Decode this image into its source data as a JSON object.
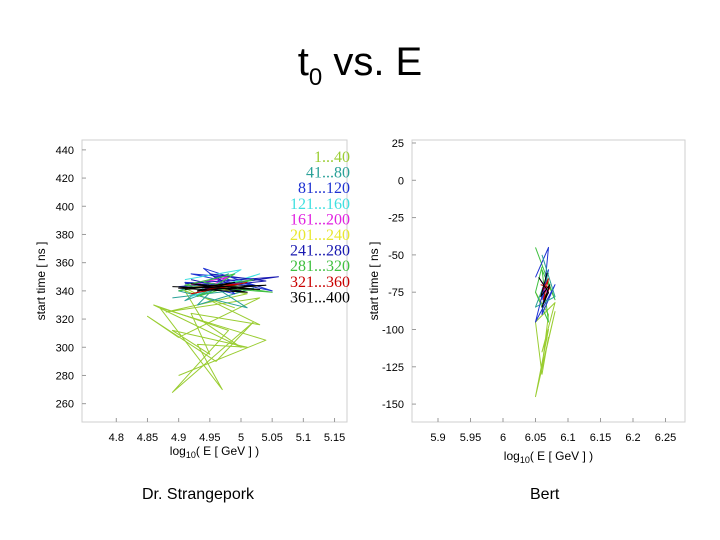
{
  "slide": {
    "title_main": "t",
    "title_sub": "0",
    "title_rest": " vs. E"
  },
  "captions": {
    "left": "Dr. Strangepork",
    "right": "Bert"
  },
  "chart_data": [
    {
      "type": "line",
      "xlabel": "log10( E [ GeV ] )",
      "ylabel": "start time [ ns ]",
      "xlim": [
        4.745,
        5.17
      ],
      "ylim": [
        247,
        447
      ],
      "xticks": [
        4.8,
        4.85,
        4.9,
        4.95,
        5,
        5.05,
        5.1,
        5.15
      ],
      "yticks": [
        260,
        280,
        300,
        320,
        340,
        360,
        380,
        400,
        420,
        440
      ],
      "grid": false,
      "legend_position": "top-right",
      "legend": [
        {
          "label": "1...40",
          "color": "#9acd32"
        },
        {
          "label": "41...80",
          "color": "#2aa198"
        },
        {
          "label": "81...120",
          "color": "#1e32d2"
        },
        {
          "label": "121...160",
          "color": "#40e0e0"
        },
        {
          "label": "161...200",
          "color": "#e020e0"
        },
        {
          "label": "201...240",
          "color": "#e8e830"
        },
        {
          "label": "241...280",
          "color": "#1818b0"
        },
        {
          "label": "281...320",
          "color": "#40c040"
        },
        {
          "label": "321...360",
          "color": "#c80000"
        },
        {
          "label": "361...400",
          "color": "#000000"
        }
      ],
      "series": [
        {
          "color": "#9acd32",
          "x": [
            4.92,
            5.01,
            4.88,
            5.03,
            4.9,
            4.85,
            4.96,
            5.02,
            4.89,
            4.98,
            4.86,
            5.0,
            4.94,
            4.91,
            4.99
          ],
          "y": [
            345,
            338,
            325,
            335,
            307,
            322,
            290,
            318,
            268,
            312,
            330,
            300,
            318,
            340,
            328
          ]
        },
        {
          "color": "#9acd32",
          "x": [
            4.9,
            5.04,
            4.87,
            4.97,
            4.93,
            5.01,
            4.89,
            4.95,
            4.92,
            5.03,
            4.91
          ],
          "y": [
            280,
            305,
            328,
            270,
            302,
            300,
            312,
            295,
            324,
            316,
            342
          ]
        },
        {
          "color": "#2aa198",
          "x": [
            4.89,
            5.02,
            4.93,
            4.98,
            4.9,
            5.01,
            4.95,
            4.91,
            5.0
          ],
          "y": [
            335,
            342,
            330,
            352,
            340,
            328,
            345,
            333,
            348
          ]
        },
        {
          "color": "#1e32d2",
          "x": [
            4.9,
            5.03,
            4.92,
            5.05,
            4.94,
            4.99,
            4.91,
            5.02,
            4.96
          ],
          "y": [
            343,
            348,
            352,
            340,
            356,
            338,
            346,
            344,
            350
          ]
        },
        {
          "color": "#40e0e0",
          "x": [
            4.91,
            5.0,
            4.94,
            5.03,
            4.92,
            4.97
          ],
          "y": [
            348,
            355,
            340,
            352,
            336,
            344
          ]
        },
        {
          "color": "#e020e0",
          "x": [
            4.92,
            4.98,
            4.94,
            5.01,
            4.95
          ],
          "y": [
            344,
            350,
            341,
            347,
            343
          ]
        },
        {
          "color": "#1818b0",
          "x": [
            4.91,
            5.06,
            4.93,
            5.04,
            4.95,
            5.0,
            4.92
          ],
          "y": [
            345,
            350,
            342,
            347,
            352,
            340,
            348
          ]
        },
        {
          "color": "#40c040",
          "x": [
            4.9,
            5.02,
            4.93,
            4.99,
            4.91,
            5.05,
            4.94
          ],
          "y": [
            340,
            348,
            336,
            352,
            344,
            339,
            346
          ]
        },
        {
          "color": "#c80000",
          "x": [
            4.91,
            5.0,
            4.93,
            4.98,
            4.92,
            5.01
          ],
          "y": [
            342,
            345,
            340,
            343,
            338,
            346
          ]
        },
        {
          "color": "#000000",
          "x": [
            4.89,
            5.03,
            4.92,
            5.01,
            4.9,
            5.04,
            4.93,
            4.99,
            4.91
          ],
          "y": [
            343,
            341,
            345,
            339,
            342,
            344,
            340,
            346,
            341
          ]
        }
      ]
    },
    {
      "type": "line",
      "xlabel": "log10( E [ GeV ] )",
      "ylabel": "start time [ ns ]",
      "xlim": [
        5.86,
        6.28
      ],
      "ylim": [
        -162,
        27
      ],
      "xticks": [
        5.9,
        5.95,
        6,
        6.05,
        6.1,
        6.15,
        6.2,
        6.25
      ],
      "yticks": [
        25,
        0,
        -25,
        -50,
        -75,
        -100,
        -125,
        -150
      ],
      "grid": false,
      "series": [
        {
          "color": "#9acd32",
          "x": [
            6.05,
            6.07,
            6.06,
            6.08,
            6.05,
            6.07,
            6.06,
            6.08,
            6.05,
            6.06,
            6.07
          ],
          "y": [
            -75,
            -90,
            -125,
            -88,
            -145,
            -100,
            -115,
            -82,
            -95,
            -130,
            -105
          ]
        },
        {
          "color": "#40c040",
          "x": [
            6.05,
            6.08,
            6.06,
            6.07,
            6.05,
            6.06
          ],
          "y": [
            -45,
            -80,
            -60,
            -95,
            -75,
            -58
          ]
        },
        {
          "color": "#1e32d2",
          "x": [
            6.05,
            6.07,
            6.06,
            6.08,
            6.05,
            6.07,
            6.06
          ],
          "y": [
            -65,
            -45,
            -90,
            -70,
            -95,
            -60,
            -80
          ]
        },
        {
          "color": "#2aa198",
          "x": [
            6.06,
            6.08,
            6.05,
            6.07
          ],
          "y": [
            -50,
            -78,
            -85,
            -62
          ]
        },
        {
          "color": "#e020e0",
          "x": [
            6.06,
            6.07,
            6.06
          ],
          "y": [
            -68,
            -76,
            -72
          ]
        },
        {
          "color": "#c80000",
          "x": [
            6.058,
            6.072,
            6.062,
            6.07,
            6.06
          ],
          "y": [
            -70,
            -72,
            -80,
            -66,
            -75
          ]
        },
        {
          "color": "#000000",
          "x": [
            6.055,
            6.07,
            6.06,
            6.072,
            6.058,
            6.068
          ],
          "y": [
            -65,
            -75,
            -85,
            -70,
            -78,
            -62
          ]
        }
      ]
    }
  ]
}
